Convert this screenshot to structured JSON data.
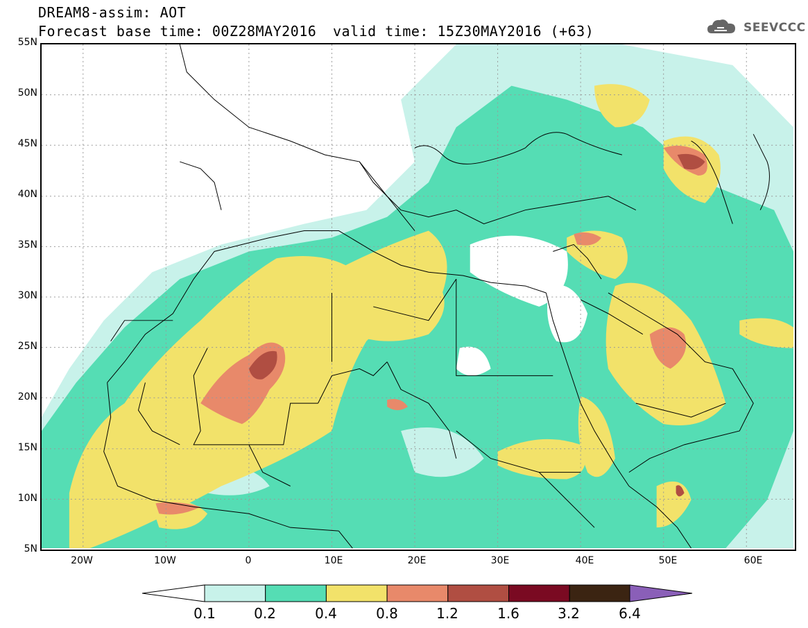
{
  "header": {
    "title_line1": "DREAM8-assim: AOT",
    "title_line2": "Forecast base time: 00Z28MAY2016",
    "valid_time": "valid time: 15Z30MAY2016 (+63)",
    "logo_text": "SEEVCCC"
  },
  "map": {
    "lat_labels": [
      "55N",
      "50N",
      "45N",
      "40N",
      "35N",
      "30N",
      "25N",
      "20N",
      "15N",
      "10N",
      "5N"
    ],
    "lon_labels": [
      "20W",
      "10W",
      "0",
      "10E",
      "20E",
      "30E",
      "40E",
      "50E",
      "60E"
    ],
    "extent": {
      "lon_min": -25,
      "lon_max": 65,
      "lat_min": 5,
      "lat_max": 55
    }
  },
  "legend": {
    "labels": [
      "0.1",
      "0.2",
      "0.4",
      "0.8",
      "1.2",
      "1.6",
      "3.2",
      "6.4"
    ],
    "colors": [
      "#c8f2ea",
      "#55ddb4",
      "#f2e26a",
      "#e8896a",
      "#b04e42",
      "#7a0a22",
      "#3b2412",
      "#8a5fb8"
    ]
  }
}
